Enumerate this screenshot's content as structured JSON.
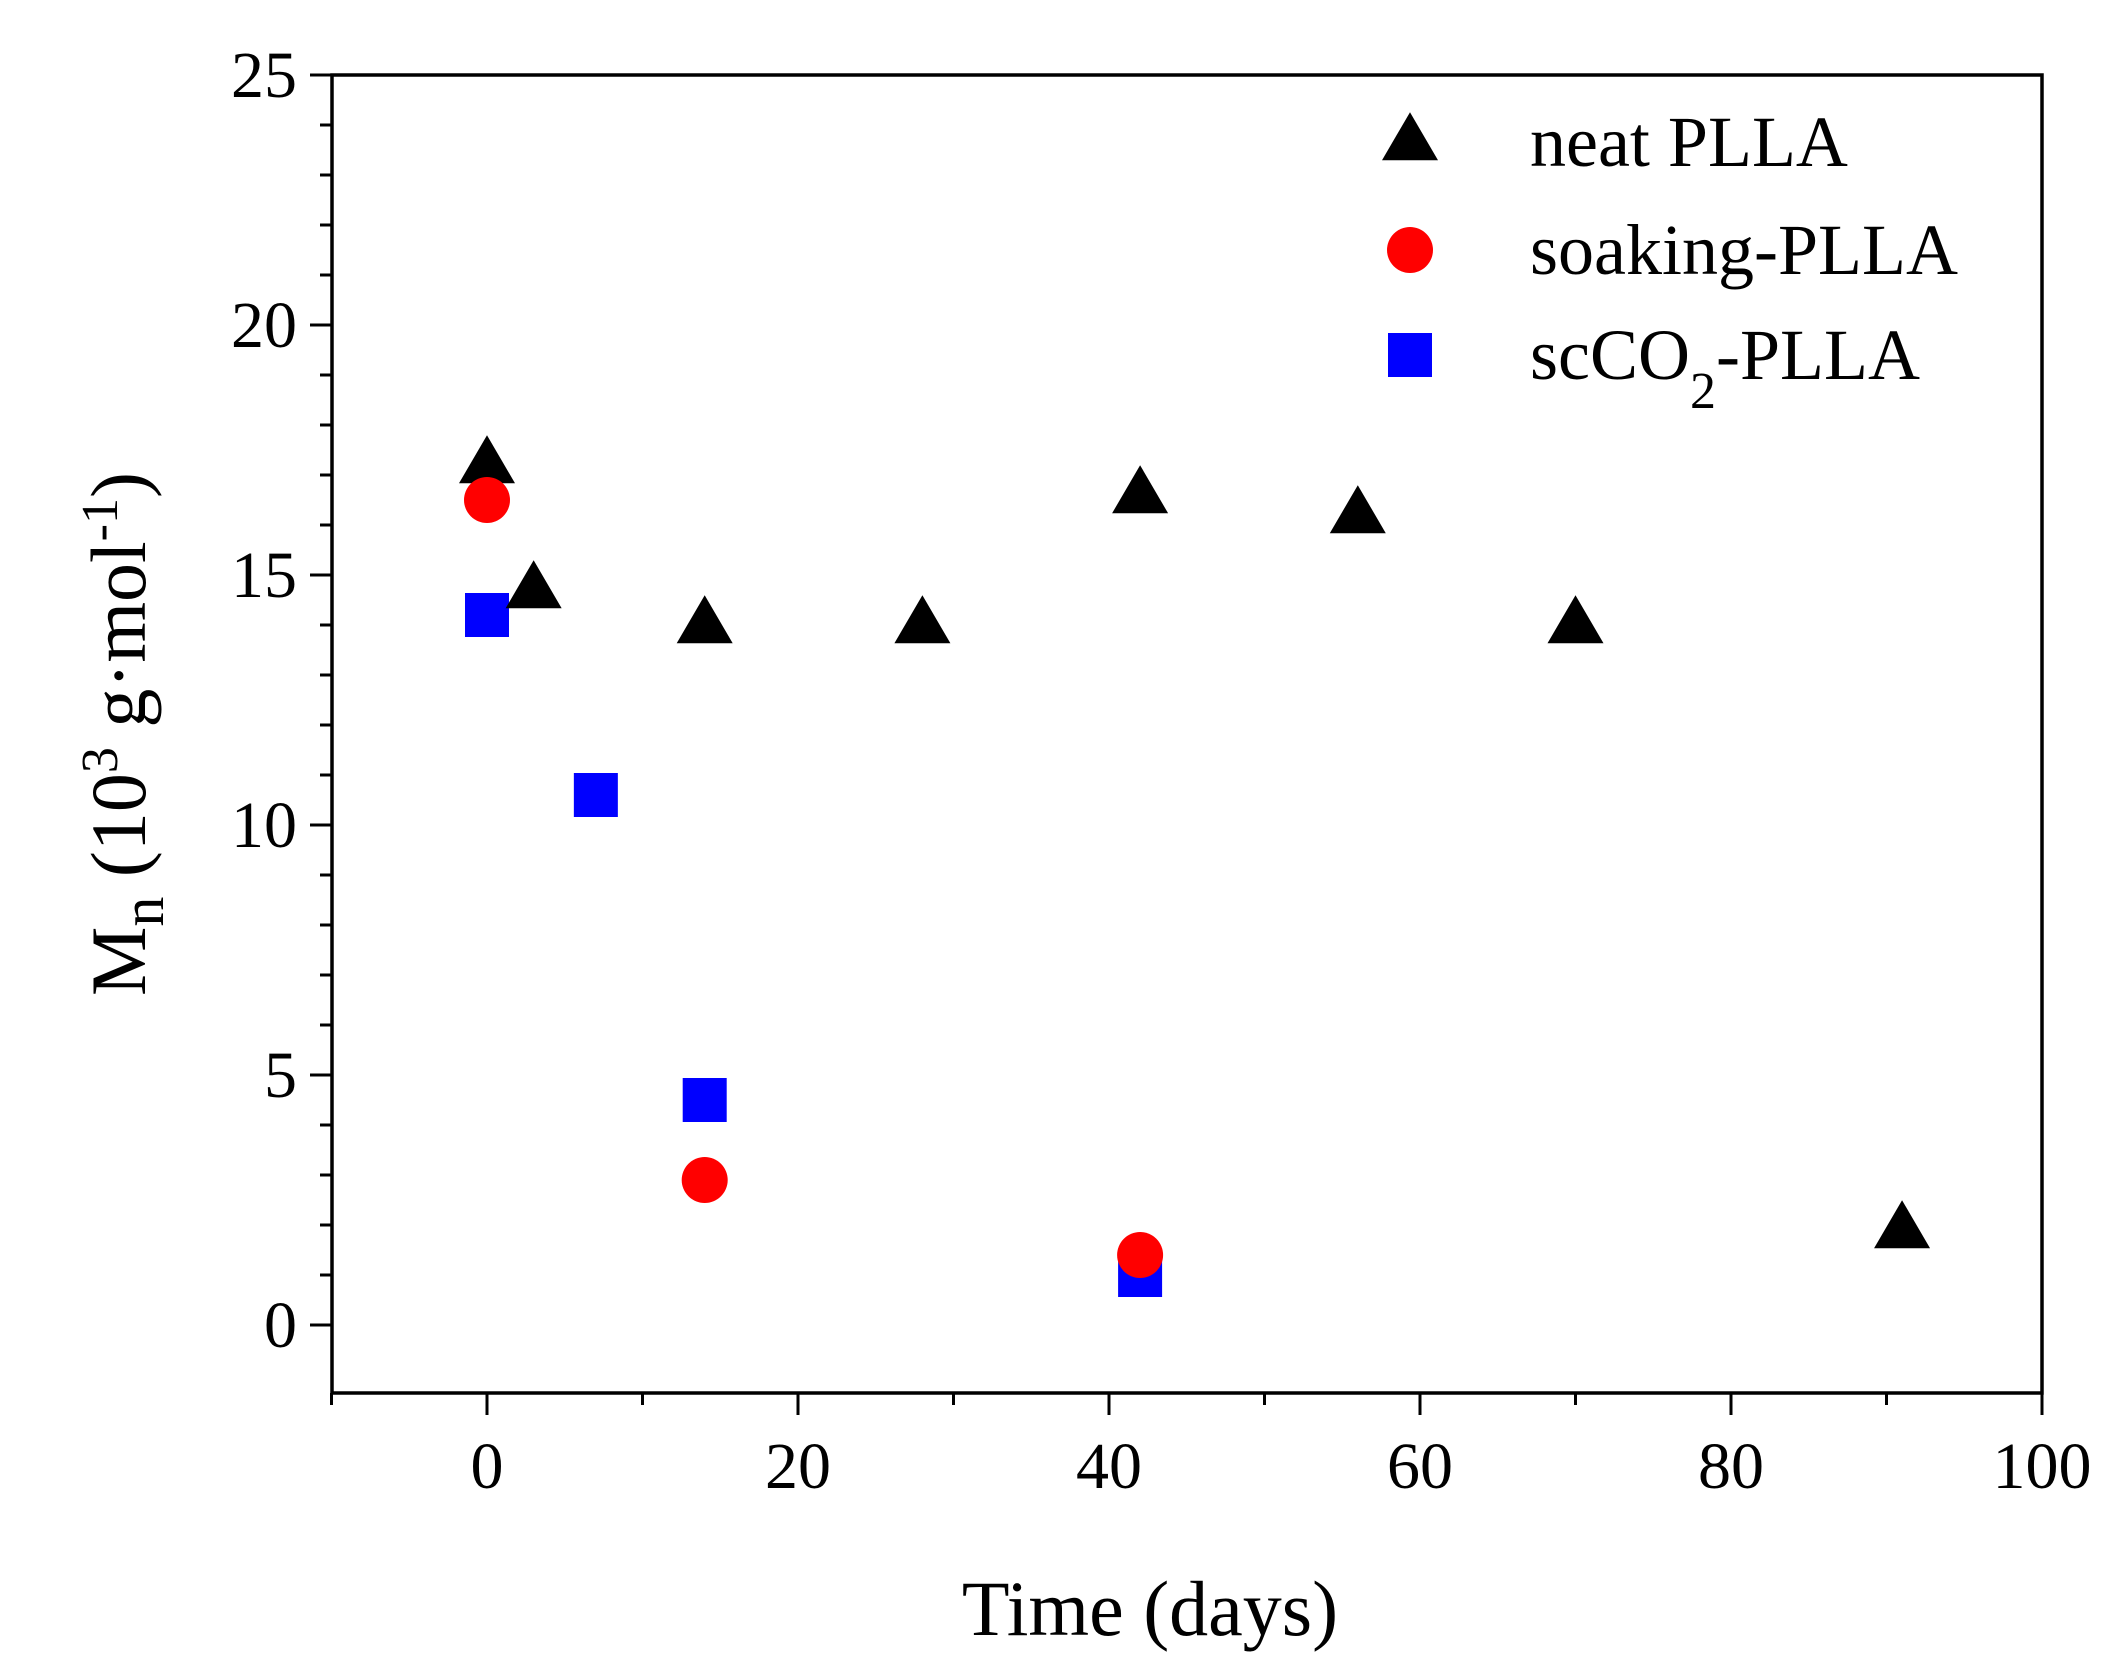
{
  "chart_data": {
    "type": "scatter",
    "title": "",
    "xlabel": "Time (days)",
    "ylabel": {
      "main": "M",
      "sub": "n",
      "unit_open": " (10",
      "unit_sup": "3",
      "unit_mid": " g·mol",
      "unit_sup2": "-1",
      "unit_close": ")"
    },
    "xlim": [
      -10,
      100
    ],
    "ylim": [
      -1.2,
      25
    ],
    "xticks": [
      0,
      20,
      40,
      60,
      80,
      100
    ],
    "xtick_labels": [
      "0",
      "20",
      "40",
      "60",
      "80",
      "100"
    ],
    "yticks": [
      0,
      5,
      10,
      15,
      20,
      25
    ],
    "ytick_labels": [
      "0",
      "5",
      "10",
      "15",
      "20",
      "25"
    ],
    "grid": false,
    "legend_position": "top-right",
    "series": [
      {
        "name": "neat PLLA",
        "legend": {
          "prefix": "neat PLLA",
          "sub": "",
          "suffix": ""
        },
        "marker": "triangle",
        "color": "#000000",
        "x": [
          0,
          3,
          14,
          28,
          42,
          56,
          70,
          91
        ],
        "y": [
          17.2,
          14.7,
          14.0,
          14.0,
          16.6,
          16.2,
          14.0,
          1.9
        ]
      },
      {
        "name": "soaking-PLLA",
        "legend": {
          "prefix": "soaking-PLLA",
          "sub": "",
          "suffix": ""
        },
        "marker": "circle",
        "color": "#ff0000",
        "x": [
          0,
          14,
          42
        ],
        "y": [
          16.5,
          2.9,
          1.4
        ]
      },
      {
        "name": "scCO2-PLLA",
        "legend": {
          "prefix": "scCO",
          "sub": "2",
          "suffix": "-PLLA"
        },
        "marker": "square",
        "color": "#0000ff",
        "x": [
          0,
          7,
          14,
          42
        ],
        "y": [
          14.2,
          10.6,
          4.5,
          1.0
        ]
      }
    ]
  }
}
